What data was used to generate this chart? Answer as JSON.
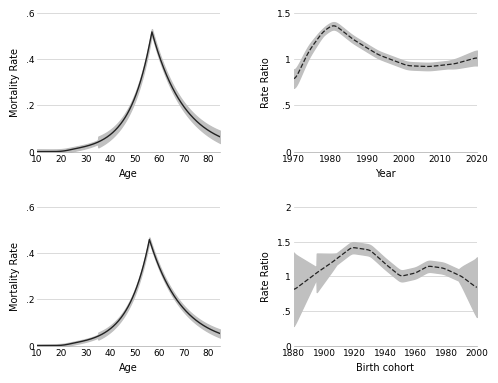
{
  "top_left": {
    "xlabel": "Age",
    "ylabel": "Mortality Rate",
    "xlim": [
      10,
      85
    ],
    "ylim": [
      0,
      0.6
    ],
    "yticks": [
      0,
      0.2,
      0.4,
      0.6
    ],
    "xticks": [
      10,
      20,
      30,
      40,
      50,
      60,
      70,
      80
    ],
    "hlines": [
      0,
      0.2,
      0.4,
      0.6
    ],
    "line_color": "#222222",
    "ci_color": "#c0c0c0"
  },
  "top_right": {
    "xlabel": "Year",
    "ylabel": "Rate Ratio",
    "xlim": [
      1970,
      2020
    ],
    "ylim": [
      0,
      1.5
    ],
    "yticks": [
      0,
      0.5,
      1.0,
      1.5
    ],
    "xticks": [
      1970,
      1980,
      1990,
      2000,
      2010,
      2020
    ],
    "hlines": [
      0,
      0.5,
      1.0,
      1.5
    ],
    "line_color": "#222222",
    "ci_color": "#c0c0c0"
  },
  "bottom_left": {
    "xlabel": "Age",
    "ylabel": "Mortality Rate",
    "xlim": [
      10,
      85
    ],
    "ylim": [
      0,
      0.6
    ],
    "yticks": [
      0,
      0.2,
      0.4,
      0.6
    ],
    "xticks": [
      10,
      20,
      30,
      40,
      50,
      60,
      70,
      80
    ],
    "hlines": [
      0,
      0.2,
      0.4,
      0.6
    ],
    "line_color": "#222222",
    "ci_color": "#c0c0c0"
  },
  "bottom_right": {
    "xlabel": "Birth cohort",
    "ylabel": "Rate Ratio",
    "xlim": [
      1880,
      2000
    ],
    "ylim": [
      0,
      2.0
    ],
    "yticks": [
      0,
      0.5,
      1.0,
      1.5,
      2.0
    ],
    "xticks": [
      1880,
      1900,
      1920,
      1940,
      1960,
      1980,
      2000
    ],
    "hlines": [
      0,
      0.5,
      1.0,
      1.5,
      2.0
    ],
    "line_color": "#222222",
    "ci_color": "#c0c0c0"
  },
  "bg_color": "#ffffff",
  "grid_color": "#cccccc",
  "label_fontsize": 7,
  "tick_fontsize": 6.5
}
